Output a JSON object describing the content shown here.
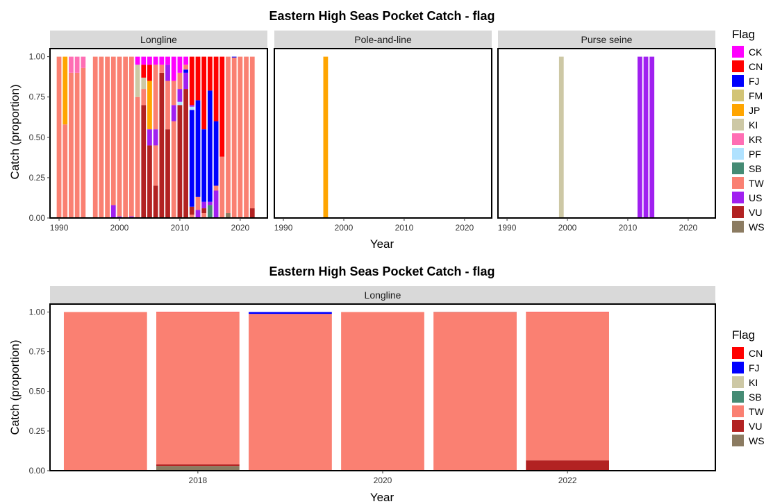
{
  "flag_colors": {
    "CK": "#FF00FF",
    "CN": "#FF0000",
    "FJ": "#0000FF",
    "FM": "#D2C476",
    "JP": "#FFA500",
    "KI": "#CDC8A5",
    "KR": "#FF6EB4",
    "PF": "#B0E2FF",
    "SB": "#458B74",
    "TW": "#FA8072",
    "US": "#A020F0",
    "VU": "#B22222",
    "WS": "#8B7B61"
  },
  "chart_data": [
    {
      "type": "bar",
      "stacked": true,
      "title": "Eastern High Seas Pocket Catch - flag",
      "xlabel": "Year",
      "ylabel": "Catch (proportion)",
      "ylim": [
        0,
        1.05
      ],
      "yticks": [
        "0.00",
        "0.25",
        "0.50",
        "0.75",
        "1.00"
      ],
      "xlim": [
        1988.5,
        2024.5
      ],
      "xticks": [
        "1990",
        "2000",
        "2010",
        "2020"
      ],
      "legend": {
        "title": "Flag",
        "position": "right",
        "items": [
          "CK",
          "CN",
          "FJ",
          "FM",
          "JP",
          "KI",
          "KR",
          "PF",
          "SB",
          "TW",
          "US",
          "VU",
          "WS"
        ]
      },
      "facets": [
        {
          "label": "Longline",
          "bars": [
            {
              "x": 1990,
              "stack": [
                [
                  "TW",
                  1.0
                ]
              ]
            },
            {
              "x": 1991,
              "stack": [
                [
                  "TW",
                  0.58
                ],
                [
                  "JP",
                  0.42
                ]
              ]
            },
            {
              "x": 1992,
              "stack": [
                [
                  "TW",
                  0.9
                ],
                [
                  "KR",
                  0.1
                ]
              ]
            },
            {
              "x": 1993,
              "stack": [
                [
                  "TW",
                  0.9
                ],
                [
                  "KR",
                  0.1
                ]
              ]
            },
            {
              "x": 1994,
              "stack": [
                [
                  "TW",
                  0.93
                ],
                [
                  "KR",
                  0.07
                ]
              ]
            },
            {
              "x": 1996,
              "stack": [
                [
                  "TW",
                  1.0
                ]
              ]
            },
            {
              "x": 1997,
              "stack": [
                [
                  "TW",
                  1.0
                ]
              ]
            },
            {
              "x": 1998,
              "stack": [
                [
                  "TW",
                  1.0
                ]
              ]
            },
            {
              "x": 1999,
              "stack": [
                [
                  "US",
                  0.08
                ],
                [
                  "TW",
                  0.92
                ]
              ]
            },
            {
              "x": 2000,
              "stack": [
                [
                  "US",
                  0.01
                ],
                [
                  "TW",
                  0.99
                ]
              ]
            },
            {
              "x": 2001,
              "stack": [
                [
                  "TW",
                  1.0
                ]
              ]
            },
            {
              "x": 2002,
              "stack": [
                [
                  "US",
                  0.01
                ],
                [
                  "TW",
                  0.99
                ]
              ]
            },
            {
              "x": 2003,
              "stack": [
                [
                  "TW",
                  0.75
                ],
                [
                  "KI",
                  0.2
                ],
                [
                  "CK",
                  0.05
                ]
              ]
            },
            {
              "x": 2004,
              "stack": [
                [
                  "VU",
                  0.7
                ],
                [
                  "TW",
                  0.1
                ],
                [
                  "KI",
                  0.07
                ],
                [
                  "CN",
                  0.08
                ],
                [
                  "CK",
                  0.05
                ]
              ]
            },
            {
              "x": 2005,
              "stack": [
                [
                  "VU",
                  0.45
                ],
                [
                  "US",
                  0.1
                ],
                [
                  "JP",
                  0.3
                ],
                [
                  "CN",
                  0.1
                ],
                [
                  "CK",
                  0.05
                ]
              ]
            },
            {
              "x": 2006,
              "stack": [
                [
                  "VU",
                  0.2
                ],
                [
                  "TW",
                  0.25
                ],
                [
                  "US",
                  0.1
                ],
                [
                  "TW",
                  0.4
                ],
                [
                  "CK",
                  0.05
                ]
              ]
            },
            {
              "x": 2007,
              "stack": [
                [
                  "VU",
                  0.9
                ],
                [
                  "TW",
                  0.05
                ],
                [
                  "CK",
                  0.05
                ]
              ]
            },
            {
              "x": 2008,
              "stack": [
                [
                  "VU",
                  0.55
                ],
                [
                  "TW",
                  0.3
                ],
                [
                  "US",
                  0.1
                ],
                [
                  "CK",
                  0.05
                ]
              ]
            },
            {
              "x": 2009,
              "stack": [
                [
                  "TW",
                  0.6
                ],
                [
                  "US",
                  0.1
                ],
                [
                  "TW",
                  0.15
                ],
                [
                  "CK",
                  0.15
                ]
              ]
            },
            {
              "x": 2010,
              "stack": [
                [
                  "VU",
                  0.7
                ],
                [
                  "PF",
                  0.02
                ],
                [
                  "US",
                  0.08
                ],
                [
                  "TW",
                  0.1
                ],
                [
                  "CK",
                  0.1
                ]
              ]
            },
            {
              "x": 2011,
              "stack": [
                [
                  "VU",
                  0.8
                ],
                [
                  "US",
                  0.1
                ],
                [
                  "FJ",
                  0.02
                ],
                [
                  "TW",
                  0.03
                ],
                [
                  "CK",
                  0.05
                ]
              ]
            },
            {
              "x": 2012,
              "stack": [
                [
                  "TW",
                  0.02
                ],
                [
                  "VU",
                  0.05
                ],
                [
                  "FJ",
                  0.6
                ],
                [
                  "PF",
                  0.02
                ],
                [
                  "US",
                  0.01
                ],
                [
                  "CN",
                  0.3
                ]
              ]
            },
            {
              "x": 2013,
              "stack": [
                [
                  "US",
                  0.05
                ],
                [
                  "TW",
                  0.08
                ],
                [
                  "FJ",
                  0.6
                ],
                [
                  "CN",
                  0.27
                ]
              ]
            },
            {
              "x": 2014,
              "stack": [
                [
                  "TW",
                  0.03
                ],
                [
                  "VU",
                  0.03
                ],
                [
                  "US",
                  0.04
                ],
                [
                  "FJ",
                  0.45
                ],
                [
                  "CN",
                  0.45
                ]
              ]
            },
            {
              "x": 2015,
              "stack": [
                [
                  "SB",
                  0.08
                ],
                [
                  "US",
                  0.02
                ],
                [
                  "FJ",
                  0.69
                ],
                [
                  "CN",
                  0.21
                ]
              ]
            },
            {
              "x": 2016,
              "stack": [
                [
                  "US",
                  0.17
                ],
                [
                  "TW",
                  0.03
                ],
                [
                  "FJ",
                  0.4
                ],
                [
                  "CN",
                  0.4
                ]
              ]
            },
            {
              "x": 2017,
              "stack": [
                [
                  "TW",
                  0.38
                ],
                [
                  "CN",
                  0.62
                ]
              ]
            },
            {
              "x": 2018,
              "stack": [
                [
                  "WS",
                  0.03
                ],
                [
                  "TW",
                  0.97
                ]
              ]
            },
            {
              "x": 2019,
              "stack": [
                [
                  "TW",
                  0.995
                ],
                [
                  "FJ",
                  0.005
                ]
              ]
            },
            {
              "x": 2020,
              "stack": [
                [
                  "TW",
                  1.0
                ]
              ]
            },
            {
              "x": 2021,
              "stack": [
                [
                  "TW",
                  1.0
                ]
              ]
            },
            {
              "x": 2022,
              "stack": [
                [
                  "VU",
                  0.06
                ],
                [
                  "TW",
                  0.94
                ]
              ]
            }
          ]
        },
        {
          "label": "Pole-and-line",
          "bars": [
            {
              "x": 1997,
              "stack": [
                [
                  "JP",
                  1.0
                ]
              ]
            }
          ]
        },
        {
          "label": "Purse seine",
          "bars": [
            {
              "x": 1999,
              "stack": [
                [
                  "KI",
                  1.0
                ]
              ]
            },
            {
              "x": 2012,
              "stack": [
                [
                  "US",
                  1.0
                ]
              ]
            },
            {
              "x": 2013,
              "stack": [
                [
                  "US",
                  1.0
                ]
              ]
            },
            {
              "x": 2014,
              "stack": [
                [
                  "US",
                  1.0
                ]
              ]
            }
          ]
        }
      ]
    },
    {
      "type": "bar",
      "stacked": true,
      "title": "Eastern High Seas Pocket Catch - flag",
      "xlabel": "Year",
      "ylabel": "Catch (proportion)",
      "ylim": [
        0,
        1.05
      ],
      "yticks": [
        "0.00",
        "0.25",
        "0.50",
        "0.75",
        "1.00"
      ],
      "xlim": [
        2016.4,
        2023.6
      ],
      "xticks": [
        "2018",
        "2020",
        "2022"
      ],
      "legend": {
        "title": "Flag",
        "position": "right",
        "items": [
          "CN",
          "FJ",
          "KI",
          "SB",
          "TW",
          "VU",
          "WS"
        ]
      },
      "facets": [
        {
          "label": "Longline",
          "bars": [
            {
              "x": 2017,
              "stack": [
                [
                  "TW",
                  1.0
                ]
              ]
            },
            {
              "x": 2018,
              "stack": [
                [
                  "WS",
                  0.03
                ],
                [
                  "VU",
                  0.01
                ],
                [
                  "TW",
                  0.957
                ],
                [
                  "CN",
                  0.003
                ]
              ]
            },
            {
              "x": 2019,
              "stack": [
                [
                  "VU",
                  0.003
                ],
                [
                  "TW",
                  0.985
                ],
                [
                  "FJ",
                  0.012
                ]
              ]
            },
            {
              "x": 2020,
              "stack": [
                [
                  "TW",
                  1.0
                ]
              ]
            },
            {
              "x": 2021,
              "stack": [
                [
                  "TW",
                  0.998
                ],
                [
                  "VU",
                  0.002
                ]
              ]
            },
            {
              "x": 2022,
              "stack": [
                [
                  "VU",
                  0.065
                ],
                [
                  "TW",
                  0.932
                ],
                [
                  "CN",
                  0.003
                ]
              ]
            }
          ]
        }
      ]
    }
  ]
}
